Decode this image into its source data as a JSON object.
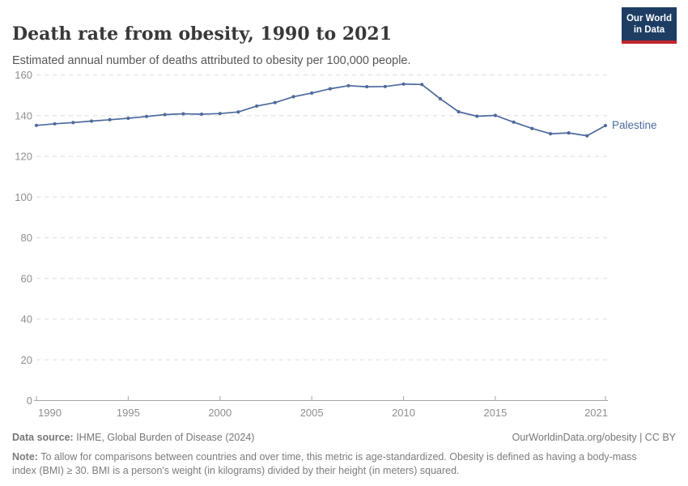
{
  "header": {
    "title": "Death rate from obesity, 1990 to 2021",
    "subtitle": "Estimated annual number of deaths attributed to obesity per 100,000 people.",
    "logo": {
      "line1": "Our World",
      "line2": "in Data"
    }
  },
  "chart_data": {
    "type": "line",
    "title": "Death rate from obesity, 1990 to 2021",
    "x": [
      1990,
      1991,
      1992,
      1993,
      1994,
      1995,
      1996,
      1997,
      1998,
      1999,
      2000,
      2001,
      2002,
      2003,
      2004,
      2005,
      2006,
      2007,
      2008,
      2009,
      2010,
      2011,
      2012,
      2013,
      2014,
      2015,
      2016,
      2017,
      2018,
      2019,
      2020,
      2021
    ],
    "series": [
      {
        "name": "Palestine",
        "color": "#4c6a9c",
        "values": [
          135.2,
          136.0,
          136.6,
          137.3,
          138.0,
          138.7,
          139.6,
          140.5,
          140.9,
          140.7,
          141.0,
          141.8,
          144.7,
          146.4,
          149.3,
          151.1,
          153.2,
          154.7,
          154.2,
          154.3,
          155.5,
          155.3,
          148.3,
          141.9,
          139.7,
          140.1,
          136.8,
          133.7,
          131.1,
          131.5,
          130.1,
          135.1
        ]
      }
    ],
    "xlabel": "",
    "ylabel": "",
    "ylim": [
      0,
      160
    ],
    "yticks": [
      0,
      20,
      40,
      60,
      80,
      100,
      120,
      140,
      160
    ],
    "xticks": [
      1990,
      1995,
      2000,
      2005,
      2010,
      2015,
      2021
    ],
    "grid": "horizontal-dashed",
    "legend_position": "end-of-line-label"
  },
  "footer": {
    "source_label": "Data source:",
    "source_text": " IHME, Global Burden of Disease (2024)",
    "link_text": "OurWorldinData.org/obesity | CC BY",
    "note_label": "Note:",
    "note_line1": " To allow for comparisons between countries and over time, this metric is age-standardized. Obesity is defined as having a body-mass",
    "note_line2": "index (BMI) ≥ 30. BMI is a person's weight (in kilograms) divided by their height (in meters) squared."
  },
  "colors": {
    "line": "#4c6a9c",
    "grid": "#dedede",
    "axis": "#a6a6a6",
    "tick_label": "#8f8f8f",
    "logo_bg": "#1d3d63",
    "logo_accent": "#c0262d"
  }
}
